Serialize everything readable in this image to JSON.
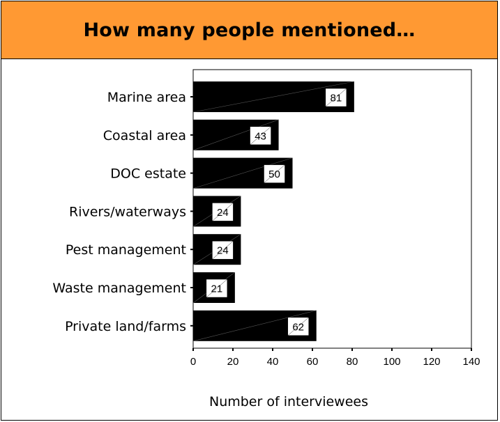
{
  "header": {
    "title": "How many people mentioned…"
  },
  "colors": {
    "header_bg": "#ff9933",
    "bar": "#000000",
    "label_box": "#ffffff"
  },
  "chart_data": {
    "type": "bar",
    "orientation": "horizontal",
    "categories": [
      "Marine area",
      "Coastal area",
      "DOC estate",
      "Rivers/waterways",
      "Pest management",
      "Waste management",
      "Private land/farms"
    ],
    "values": [
      81,
      43,
      50,
      24,
      24,
      21,
      62
    ],
    "title": "How many people mentioned…",
    "xlabel": "Number of interviewees",
    "ylabel": "",
    "xlim": [
      0,
      140
    ],
    "xticks": [
      0,
      20,
      40,
      60,
      80,
      100,
      120,
      140
    ],
    "data_labels": true,
    "grid": false,
    "legend": "none"
  }
}
